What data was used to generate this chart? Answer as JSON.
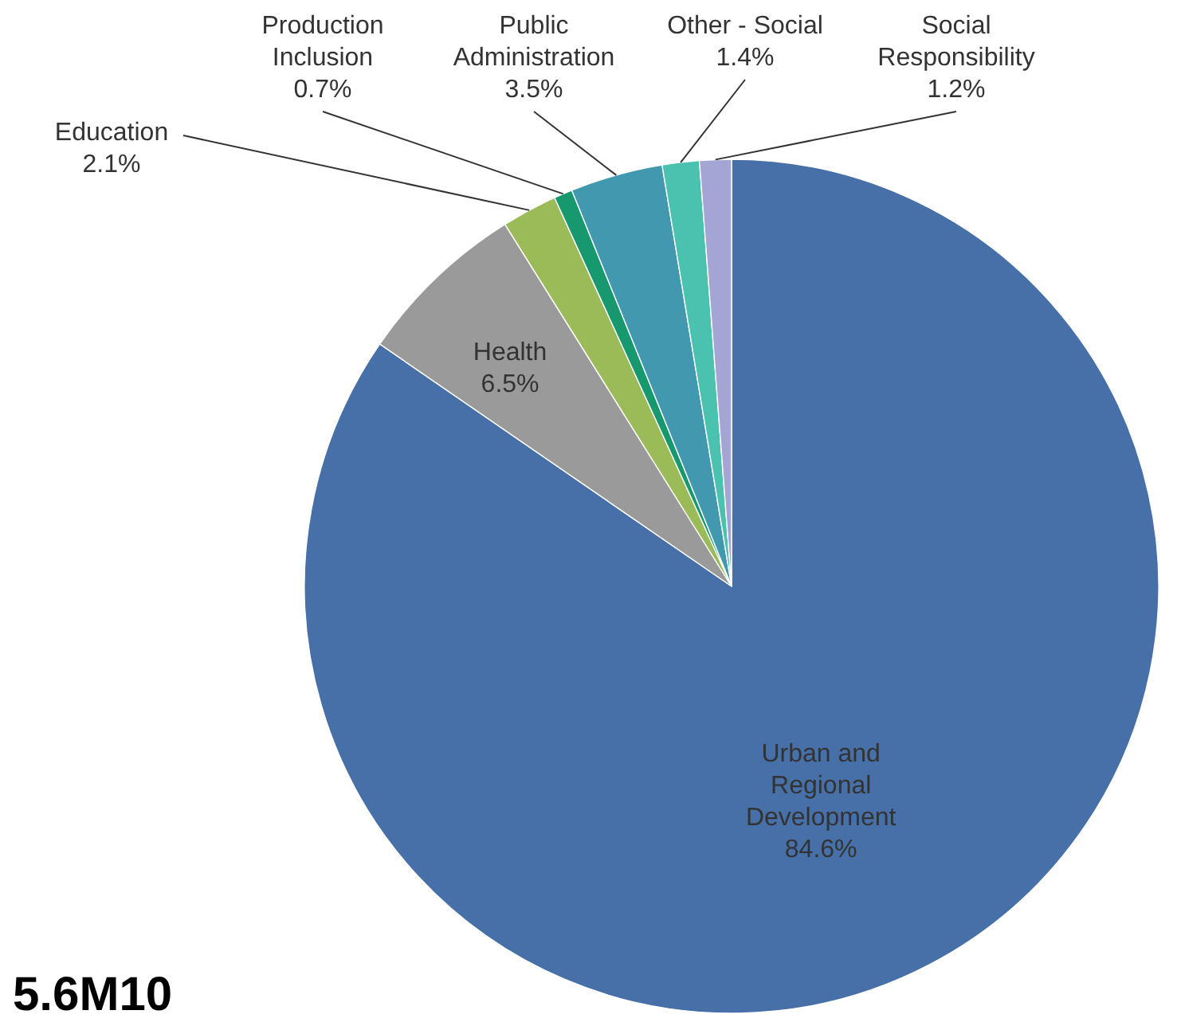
{
  "chart_data": {
    "type": "pie",
    "categories": [
      "Urban and Regional Development",
      "Health",
      "Education",
      "Production Inclusion",
      "Public Administration",
      "Other - Social",
      "Social Responsibility"
    ],
    "values": [
      84.6,
      6.5,
      2.1,
      0.7,
      3.5,
      1.4,
      1.2
    ],
    "value_labels": [
      "84.6%",
      "6.5%",
      "2.1%",
      "0.7%",
      "3.5%",
      "1.4%",
      "1.2%"
    ],
    "colors": [
      "#4670a7",
      "#9a9a9a",
      "#9bbb59",
      "#17986e",
      "#4198af",
      "#4bc2b0",
      "#a5a5d5"
    ],
    "annotations": [
      "5.6M10"
    ]
  }
}
